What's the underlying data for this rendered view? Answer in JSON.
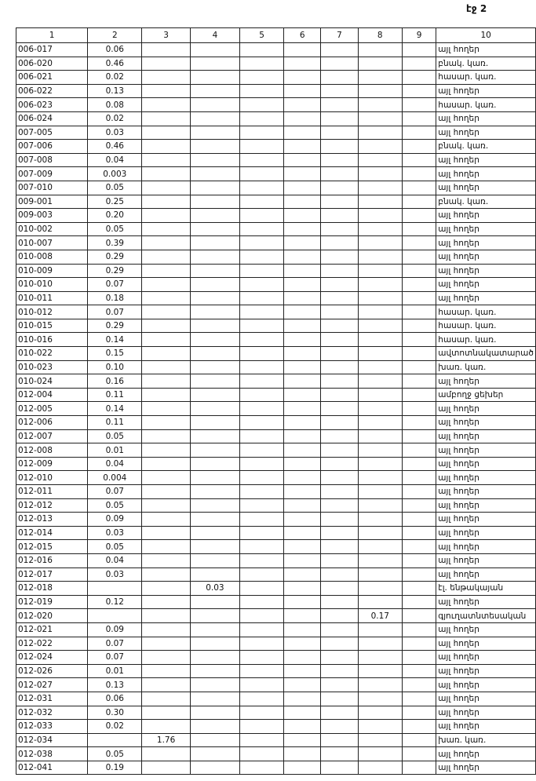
{
  "header": {
    "page": "էջ 2"
  },
  "table": {
    "columns": [
      "1",
      "2",
      "3",
      "4",
      "5",
      "6",
      "7",
      "8",
      "9",
      "10"
    ],
    "rows": [
      {
        "c1": "006-017",
        "c2": "0.06",
        "c10": "այլ հողեր"
      },
      {
        "c1": "006-020",
        "c2": "0.46",
        "c10": "բնակ. կառ."
      },
      {
        "c1": "006-021",
        "c2": "0.02",
        "c10": "հասար. կառ."
      },
      {
        "c1": "006-022",
        "c2": "0.13",
        "c10": "այլ հողեր"
      },
      {
        "c1": "006-023",
        "c2": "0.08",
        "c10": "հասար. կառ."
      },
      {
        "c1": "006-024",
        "c2": "0.02",
        "c10": "այլ հողեր"
      },
      {
        "c1": "007-005",
        "c2": "0.03",
        "c10": "այլ հողեր"
      },
      {
        "c1": "007-006",
        "c2": "0.46",
        "c10": "բնակ. կառ."
      },
      {
        "c1": "007-008",
        "c2": "0.04",
        "c10": "այլ հողեր"
      },
      {
        "c1": "007-009",
        "c2": "0.003",
        "c10": "այլ հողեր"
      },
      {
        "c1": "007-010",
        "c2": "0.05",
        "c10": "այլ հողեր"
      },
      {
        "c1": "009-001",
        "c2": "0.25",
        "c10": "բնակ. կառ."
      },
      {
        "c1": "009-003",
        "c2": "0.20",
        "c10": "այլ հողեր"
      },
      {
        "c1": "010-002",
        "c2": "0.05",
        "c10": "այլ հողեր"
      },
      {
        "c1": "010-007",
        "c2": "0.39",
        "c10": "այլ հողեր"
      },
      {
        "c1": "010-008",
        "c2": "0.29",
        "c10": "այլ հողեր"
      },
      {
        "c1": "010-009",
        "c2": "0.29",
        "c10": "այլ հողեր"
      },
      {
        "c1": "010-010",
        "c2": "0.07",
        "c10": "այլ հողեր"
      },
      {
        "c1": "010-011",
        "c2": "0.18",
        "c10": "այլ հողեր"
      },
      {
        "c1": "010-012",
        "c2": "0.07",
        "c10": "հասար. կառ."
      },
      {
        "c1": "010-015",
        "c2": "0.29",
        "c10": "հասար. կառ."
      },
      {
        "c1": "010-016",
        "c2": "0.14",
        "c10": "հասար. կառ."
      },
      {
        "c1": "010-022",
        "c2": "0.15",
        "c10": "ավտոտնակատարած"
      },
      {
        "c1": "010-023",
        "c2": "0.10",
        "c10": "խառ. կառ."
      },
      {
        "c1": "010-024",
        "c2": "0.16",
        "c10": "այլ հողեր"
      },
      {
        "c1": "012-004",
        "c2": "0.11",
        "c10": "ամբողջ ցեխեր"
      },
      {
        "c1": "012-005",
        "c2": "0.14",
        "c10": "այլ հողեր"
      },
      {
        "c1": "012-006",
        "c2": "0.11",
        "c10": "այլ հողեր"
      },
      {
        "c1": "012-007",
        "c2": "0.05",
        "c10": "այլ հողեր"
      },
      {
        "c1": "012-008",
        "c2": "0.01",
        "c10": "այլ հողեր"
      },
      {
        "c1": "012-009",
        "c2": "0.04",
        "c10": "այլ հողեր"
      },
      {
        "c1": "012-010",
        "c2": "0.004",
        "c10": "այլ հողեր"
      },
      {
        "c1": "012-011",
        "c2": "0.07",
        "c10": "այլ հողեր"
      },
      {
        "c1": "012-012",
        "c2": "0.05",
        "c10": "այլ հողեր"
      },
      {
        "c1": "012-013",
        "c2": "0.09",
        "c10": "այլ հողեր"
      },
      {
        "c1": "012-014",
        "c2": "0.03",
        "c10": "այլ հողեր"
      },
      {
        "c1": "012-015",
        "c2": "0.05",
        "c10": "այլ հողեր"
      },
      {
        "c1": "012-016",
        "c2": "0.04",
        "c10": "այլ հողեր"
      },
      {
        "c1": "012-017",
        "c2": "0.03",
        "c10": "այլ հողեր"
      },
      {
        "c1": "012-018",
        "c4": "0.03",
        "c10": "էլ. ենթակայան"
      },
      {
        "c1": "012-019",
        "c2": "0.12",
        "c10": "այլ հողեր"
      },
      {
        "c1": "012-020",
        "c8": "0.17",
        "c10": "գյուղատնտեսական"
      },
      {
        "c1": "012-021",
        "c2": "0.09",
        "c10": "այլ հողեր"
      },
      {
        "c1": "012-022",
        "c2": "0.07",
        "c10": "այլ հողեր"
      },
      {
        "c1": "012-024",
        "c2": "0.07",
        "c10": "այլ հողեր"
      },
      {
        "c1": "012-026",
        "c2": "0.01",
        "c10": "այլ հողեր"
      },
      {
        "c1": "012-027",
        "c2": "0.13",
        "c10": "այլ հողեր"
      },
      {
        "c1": "012-031",
        "c2": "0.06",
        "c10": "այլ հողեր"
      },
      {
        "c1": "012-032",
        "c2": "0.30",
        "c10": "այլ հողեր"
      },
      {
        "c1": "012-033",
        "c2": "0.02",
        "c10": "այլ հողեր"
      },
      {
        "c1": "012-034",
        "c3": "1.76",
        "c10": "խառ. կառ."
      },
      {
        "c1": "012-038",
        "c2": "0.05",
        "c10": "այլ հողեր"
      },
      {
        "c1": "012-041",
        "c2": "0.19",
        "c10": "այլ հողեր"
      }
    ]
  }
}
